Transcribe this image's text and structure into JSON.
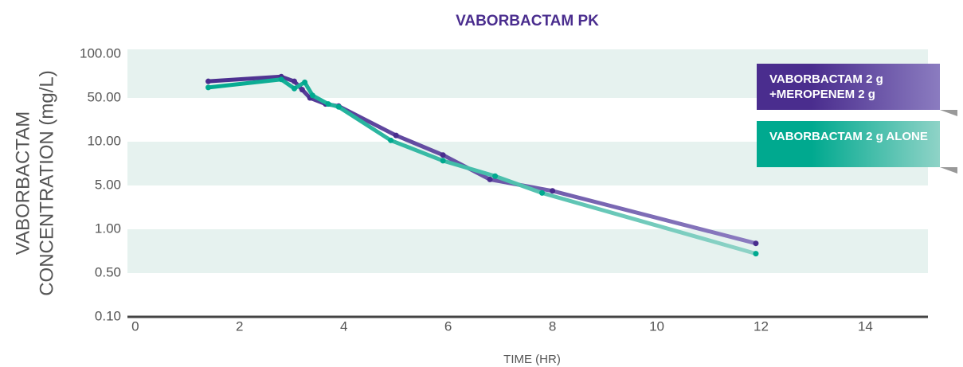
{
  "chart_data": {
    "type": "line",
    "title": "VABORBACTAM PK",
    "ylabel": [
      "VABORBACTAM",
      "CONCENTRATION (mg/L)"
    ],
    "xlabel": "TIME (HR)",
    "log": true,
    "xlim": [
      -0.15,
      15.2
    ],
    "xticks": [
      0,
      2,
      4,
      6,
      8,
      10,
      12,
      14
    ],
    "ylim": [
      0.1,
      100
    ],
    "yticks": [
      {
        "value": 0.1,
        "label": "0.10"
      },
      {
        "value": 0.5,
        "label": "0.50"
      },
      {
        "value": 1,
        "label": "1.00"
      },
      {
        "value": 5,
        "label": "5.00"
      },
      {
        "value": 10,
        "label": "10.00"
      },
      {
        "value": 50,
        "label": "50.00"
      },
      {
        "value": 100,
        "label": "100.00"
      }
    ],
    "series": [
      {
        "name": "VABORBACTAM 2 g +MEROPENEM 2 g",
        "color": "#4a2d8e",
        "color_end": "#8b7cc0",
        "x": [
          1.4,
          2.8,
          3.05,
          3.2,
          3.35,
          3.65,
          3.9,
          5,
          5.9,
          6.8,
          8,
          11.9
        ],
        "values": [
          65,
          70,
          65,
          57,
          50,
          40,
          37,
          12.6,
          8.1,
          5.5,
          4.1,
          0.8
        ]
      },
      {
        "name": "VABORBACTAM 2 g ALONE",
        "color": "#00a98f",
        "color_end": "#8fd3c7",
        "x": [
          1.4,
          2.8,
          3.05,
          3.25,
          3.4,
          3.7,
          3.9,
          4.9,
          5.9,
          6.9,
          7.8,
          11.9
        ],
        "values": [
          59,
          67,
          58,
          64,
          52,
          40,
          36,
          10.5,
          7.4,
          5.8,
          3.8,
          0.68
        ]
      }
    ]
  }
}
